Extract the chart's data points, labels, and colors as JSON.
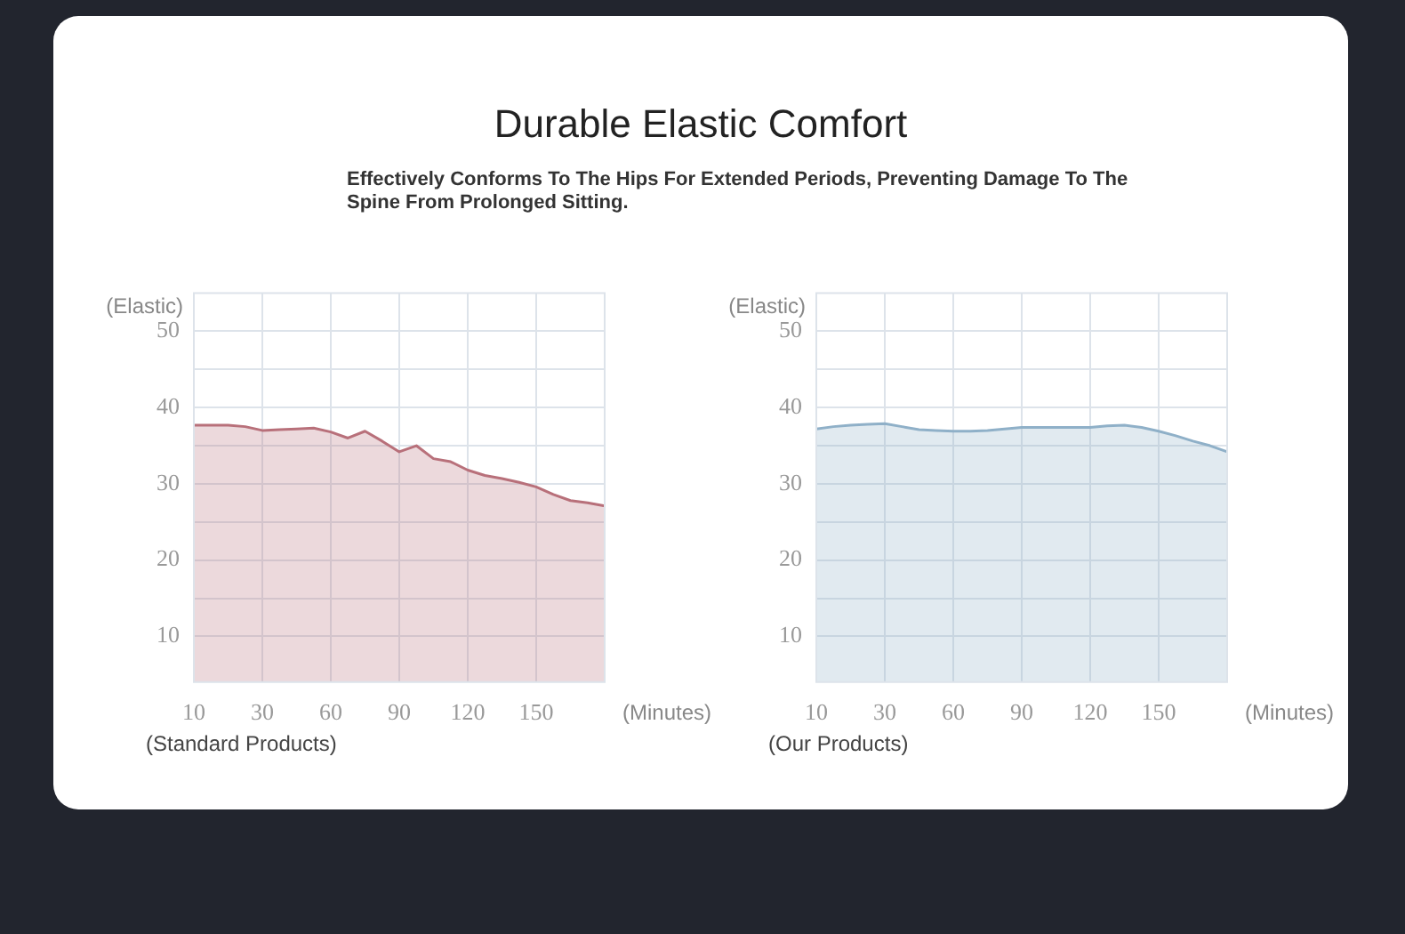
{
  "chart_data": [
    {
      "type": "area",
      "title": "Durable Elastic Comfort",
      "subtitle": "Effectively Conforms To The Hips For Extended Periods, Preventing Damage To The Spine From Prolonged Sitting.",
      "xlabel": "(Minutes)",
      "ylabel": "(Elastic)",
      "annotations": [
        "(Standard Products)"
      ],
      "categories": [
        "10",
        null,
        null,
        null,
        "30",
        null,
        null,
        null,
        "60",
        null,
        null,
        null,
        "90",
        null,
        null,
        null,
        "120",
        null,
        null,
        null,
        "150",
        null,
        null,
        null,
        null
      ],
      "series": [
        {
          "color": "#b8707a",
          "values": [
            37.7,
            37.7,
            37.7,
            37.5,
            37.0,
            37.1,
            37.2,
            37.3,
            36.8,
            36.0,
            36.9,
            35.6,
            34.2,
            35.0,
            33.3,
            32.9,
            31.8,
            31.1,
            30.7,
            30.2,
            29.6,
            28.6,
            27.8,
            27.5,
            27.1
          ]
        }
      ],
      "ylim": [
        4,
        55
      ],
      "yticks": [
        10,
        {
          "value": 15,
          "label": null
        },
        20,
        {
          "value": 25,
          "label": null
        },
        30,
        {
          "value": 35,
          "label": null
        },
        40,
        {
          "value": 45,
          "label": null
        },
        50
      ],
      "grid": true,
      "legend": false
    },
    {
      "type": "area",
      "xlabel": "(Minutes)",
      "ylabel": "(Elastic)",
      "annotations": [
        "(Our Products)"
      ],
      "categories": [
        "10",
        null,
        null,
        null,
        "30",
        null,
        null,
        null,
        "60",
        null,
        null,
        null,
        "90",
        null,
        null,
        null,
        "120",
        null,
        null,
        null,
        "150",
        null,
        null,
        null,
        null
      ],
      "series": [
        {
          "color": "#8fb0c8",
          "values": [
            37.2,
            37.5,
            37.7,
            37.8,
            37.9,
            37.5,
            37.1,
            37.0,
            36.9,
            36.9,
            37.0,
            37.2,
            37.4,
            37.4,
            37.4,
            37.4,
            37.4,
            37.6,
            37.7,
            37.4,
            36.9,
            36.3,
            35.6,
            35.0,
            34.2
          ]
        }
      ],
      "ylim": [
        4,
        55
      ],
      "yticks": [
        10,
        {
          "value": 15,
          "label": null
        },
        20,
        {
          "value": 25,
          "label": null
        },
        30,
        {
          "value": 35,
          "label": null
        },
        40,
        {
          "value": 45,
          "label": null
        },
        50
      ],
      "grid": true,
      "legend": false
    }
  ]
}
